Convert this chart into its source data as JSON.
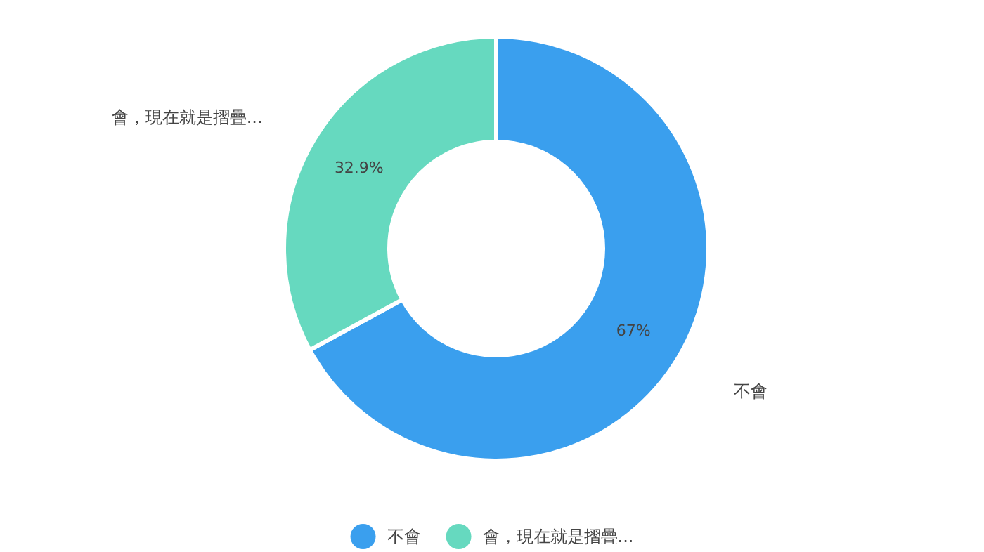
{
  "chart_data": {
    "type": "donut",
    "categories": [
      "不會",
      "會，現在就是摺疊..."
    ],
    "values": [
      67,
      32.9
    ],
    "colors": [
      "#3a9fee",
      "#66d9bf"
    ],
    "value_labels": [
      "67%",
      "32.9%"
    ],
    "legend": "bottom"
  }
}
